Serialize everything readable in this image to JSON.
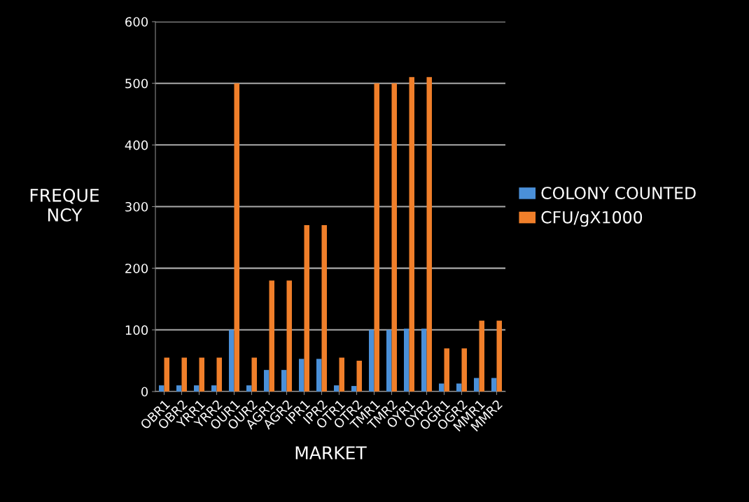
{
  "chart_data": {
    "type": "bar",
    "xlabel": "MARKET",
    "ylabel": "FREQUE\nNCY",
    "categories": [
      "OBR1",
      "OBR2",
      "YRR1",
      "YRR2",
      "OUR1",
      "OUR2",
      "AGR1",
      "AGR2",
      "IPR1",
      "IPR2",
      "OTR1",
      "OTR2",
      "TMR1",
      "TMR2",
      "OYR1",
      "OYR2",
      "OGR1",
      "OGR2",
      "MMR1",
      "MMR2"
    ],
    "series": [
      {
        "name": "COLONY COUNTED",
        "color": "#4a90d9",
        "values": [
          10,
          10,
          10,
          10,
          100,
          10,
          35,
          35,
          53,
          53,
          10,
          9,
          100,
          100,
          102,
          102,
          13,
          13,
          22,
          22
        ]
      },
      {
        "name": "CFU/gX1000",
        "color": "#f07f2a",
        "values": [
          55,
          55,
          55,
          55,
          500,
          55,
          180,
          180,
          270,
          270,
          55,
          50,
          500,
          500,
          510,
          510,
          70,
          70,
          115,
          115
        ]
      }
    ],
    "ylim": [
      0,
      600
    ],
    "yticks": [
      0,
      100,
      200,
      300,
      400,
      500,
      600
    ],
    "grid": "y",
    "legend": "right"
  }
}
